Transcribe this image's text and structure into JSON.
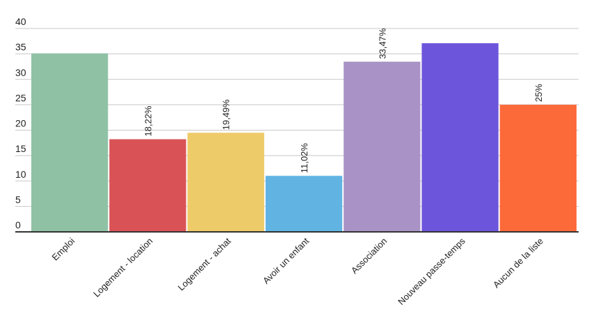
{
  "chart_data": {
    "type": "bar",
    "categories": [
      "Emploi",
      "Logement - location",
      "Logement - achat",
      "Avoir un enfant",
      "Association",
      "Nouveau passe-temps",
      "Aucun de la liste"
    ],
    "values": [
      35.1,
      18.22,
      19.49,
      11.02,
      33.47,
      37.1,
      25
    ],
    "value_labels": [
      null,
      "18,22%",
      "19,49%",
      "11,02%",
      "33,47%",
      null,
      "25%"
    ],
    "colors": [
      "#8fc1a5",
      "#d95356",
      "#eecb69",
      "#61b4e2",
      "#a993c6",
      "#6d55db",
      "#fd6a3a"
    ],
    "ylim": [
      0,
      40
    ],
    "yticks": [
      0,
      5,
      10,
      15,
      20,
      25,
      30,
      35,
      40
    ],
    "grid": true
  }
}
